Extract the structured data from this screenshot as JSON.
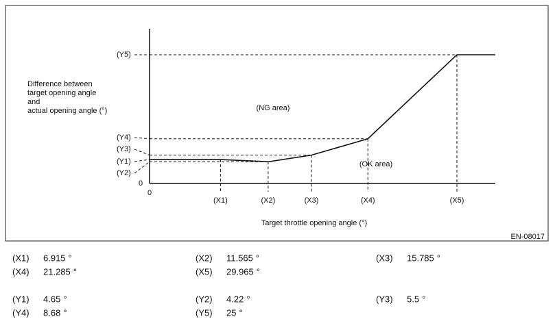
{
  "diagram": {
    "y_axis_title": [
      "Difference between",
      "target opening angle",
      "and",
      "actual opening angle (°)"
    ],
    "x_axis_title": "Target throttle opening angle (°)",
    "origin_y_label": "0",
    "origin_x_label": "0",
    "ng_area": "(NG area)",
    "ok_area": "(OK area)",
    "figure_code": "EN-08017"
  },
  "x_points": [
    {
      "label": "(X1)",
      "value": 6.915,
      "unit": "°"
    },
    {
      "label": "(X2)",
      "value": 11.565,
      "unit": "°"
    },
    {
      "label": "(X3)",
      "value": 15.785,
      "unit": "°"
    },
    {
      "label": "(X4)",
      "value": 21.285,
      "unit": "°"
    },
    {
      "label": "(X5)",
      "value": 29.965,
      "unit": "°"
    }
  ],
  "y_points": [
    {
      "label": "(Y1)",
      "value": 4.65,
      "unit": "°"
    },
    {
      "label": "(Y2)",
      "value": 4.22,
      "unit": "°"
    },
    {
      "label": "(Y3)",
      "value": 5.5,
      "unit": "°"
    },
    {
      "label": "(Y4)",
      "value": 8.68,
      "unit": "°"
    },
    {
      "label": "(Y5)",
      "value": 25,
      "unit": "°"
    }
  ]
}
